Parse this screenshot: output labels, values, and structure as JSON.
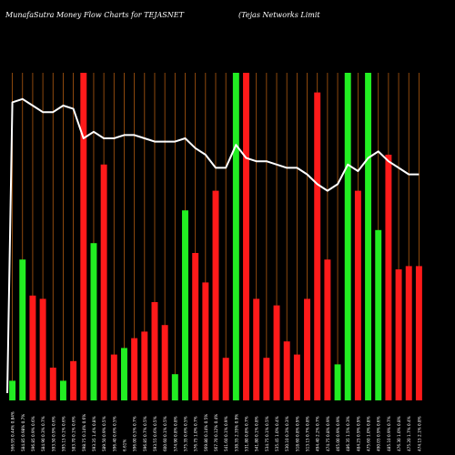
{
  "header": {
    "title_left": "MunafaSutra  Money Flow  Charts for TEJASNET",
    "title_right": "(Tejas Networks Limit"
  },
  "colors": {
    "background": "#000000",
    "up": "#22ee22",
    "down": "#ff1a1a",
    "grid": "#b05a10",
    "line": "#ffffff",
    "label": "#ffffff"
  },
  "chart_data": {
    "type": "bar",
    "title": "MunafaSutra  Money Flow  Charts for TEJASNET",
    "ylim": [
      0,
      100
    ],
    "grid": true,
    "categories": [
      "566.95 0.44% 0.84%",
      "584.85 0.98% 0.7%",
      "596.85 0.9% 0.6%",
      "584.90 0.3% 0.7%",
      "593.50 0.9% 0.6%",
      "595.15 0.1% 0.6%",
      "583.70 0.1% 0.6%",
      "598.75 0.14% 0.6%",
      "593.35 1.4% 0.8%",
      "589.50 0.9% 0.5%",
      "596.40 0.6% 0.5%",
      "6.61%",
      "596.00 0.5% 0.7%",
      "596.85 0.7% 0.5%",
      "593.55 0.6% 0.5%",
      "600.60 0.1% 0.5%",
      "574.90 0.8% 0.8%",
      "575.35 0.6% 0.5%",
      "576.75 1.0% 0.7%",
      "569.80 0.14% 0.5%",
      "567.70 0.12% 0.4%",
      "541.60 0.1% 0.9%",
      "538.35 2.35% 0.9%",
      "531.80 0.8% 0.7%",
      "541.80 0.1% 0.8%",
      "534.75 0.1% 0.5%",
      "535.45 1.0% 0.4%",
      "530.10 0.3% 0.3%",
      "518.60 0.8% 0.9%",
      "513.15 0.7% 0.8%",
      "494.40 2.2% 0.7%",
      "474.75 0.8% 0.9%",
      "465.00 0.9% 0.9%",
      "486.35 1.5% 0.3%",
      "484.25 0.9% 0.9%",
      "475.60 1.0% 0.8%",
      "490.05 0.9% 0.6%",
      "485.10 0.9% 0.7%",
      "476.30 1.0% 0.8%",
      "475.20 1.7% 0.4%",
      "474.15 2.1% 0.8%"
    ],
    "series": [
      {
        "values": [
          6,
          43,
          32,
          31,
          10,
          6,
          12,
          100,
          48,
          72,
          14,
          16,
          19,
          21,
          30,
          23,
          8,
          58,
          45,
          36,
          64,
          13,
          100,
          100,
          31,
          13,
          29,
          18,
          14,
          31,
          94,
          43,
          11,
          100,
          64,
          100,
          52,
          75,
          40,
          41,
          41
        ],
        "colors": [
          "green",
          "green",
          "red",
          "red",
          "red",
          "green",
          "red",
          "red",
          "green",
          "red",
          "red",
          "green",
          "red",
          "red",
          "red",
          "red",
          "green",
          "green",
          "red",
          "red",
          "red",
          "red",
          "green",
          "red",
          "red",
          "red",
          "red",
          "red",
          "red",
          "red",
          "red",
          "red",
          "green",
          "green",
          "red",
          "green",
          "green",
          "red",
          "red",
          "red",
          "red"
        ]
      },
      {
        "type": "line",
        "values": [
          91,
          92,
          90,
          88,
          88,
          90,
          89,
          80,
          82,
          80,
          80,
          81,
          81,
          80,
          79,
          79,
          79,
          80,
          77,
          75,
          71,
          71,
          78,
          74,
          73,
          73,
          72,
          71,
          71,
          69,
          66,
          64,
          66,
          72,
          70,
          74,
          76,
          73,
          71,
          69,
          69
        ]
      }
    ]
  }
}
